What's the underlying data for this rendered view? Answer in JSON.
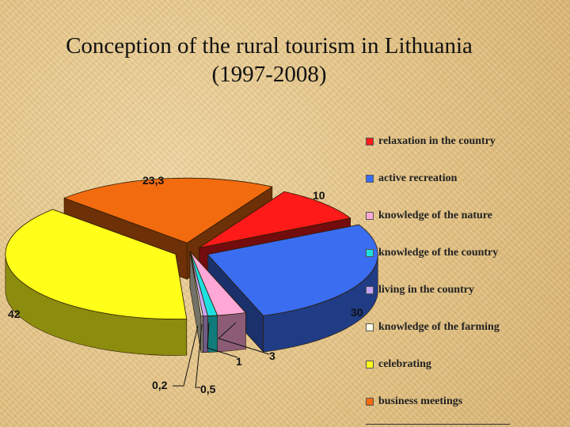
{
  "title": {
    "line1": "Conception of the rural tourism in Lithuania",
    "line2": "(1997-2008)"
  },
  "chart_data": {
    "type": "pie",
    "style": "3d-exploded",
    "legend_position": "right",
    "slices": [
      {
        "label": "relaxation in the country",
        "value_label": "10",
        "value": 10,
        "color": "#ff1a1a"
      },
      {
        "label": "active recreation",
        "value_label": "30",
        "value": 30,
        "color": "#3a6df0"
      },
      {
        "label": "knowledge of the nature",
        "value_label": "3",
        "value": 3,
        "color": "#ffa8d8"
      },
      {
        "label": "knowledge of the country",
        "value_label": "1",
        "value": 1,
        "color": "#1fe0e0"
      },
      {
        "label": "living in the country",
        "value_label": "0,5",
        "value": 0.5,
        "color": "#c9a6f5"
      },
      {
        "label": "knowledge of the farming",
        "value_label": "0,2",
        "value": 0.2,
        "color": "#fffde8"
      },
      {
        "label": "celebrating",
        "value_label": "42",
        "value": 42,
        "color": "#ffff1a"
      },
      {
        "label": "business meetings",
        "value_label": "23,3",
        "value": 23.3,
        "color": "#f26b0f"
      }
    ]
  }
}
